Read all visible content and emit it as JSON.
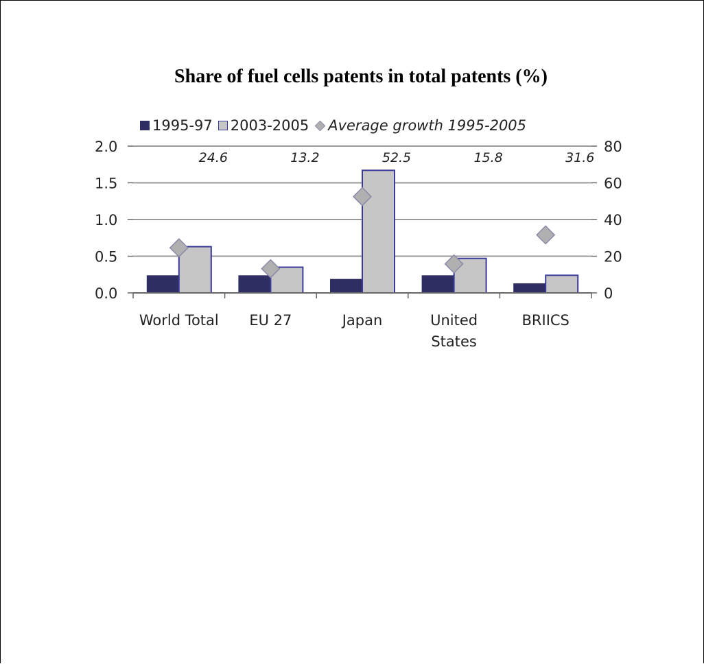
{
  "chart_data": {
    "type": "bar",
    "title": "Share of fuel cells patents in total patents (%)",
    "categories": [
      "World Total",
      "EU 27",
      "Japan",
      "United States",
      "BRIICS"
    ],
    "category_lines": [
      [
        "World Total"
      ],
      [
        "EU 27"
      ],
      [
        "Japan"
      ],
      [
        "United",
        "States"
      ],
      [
        "BRIICS"
      ]
    ],
    "series": [
      {
        "name": "1995-97",
        "type": "bar",
        "axis": "left",
        "values": [
          0.24,
          0.24,
          0.19,
          0.24,
          0.13
        ],
        "color": "#2e2e63"
      },
      {
        "name": "2003-2005",
        "type": "bar",
        "axis": "left",
        "values": [
          0.63,
          0.35,
          1.67,
          0.47,
          0.24
        ],
        "color": "#c6c6c6",
        "edge": "#3a3a9a"
      },
      {
        "name": "Average growth 1995-2005",
        "type": "scatter",
        "axis": "right",
        "values": [
          24.6,
          13.2,
          52.5,
          15.8,
          31.6
        ],
        "color": "#b0b0b0"
      }
    ],
    "data_labels": [
      "24.6",
      "13.2",
      "52.5",
      "15.8",
      "31.6"
    ],
    "left_axis": {
      "ylim": [
        0,
        2.0
      ],
      "ticks": [
        "0.0",
        "0.5",
        "1.0",
        "1.5",
        "2.0"
      ]
    },
    "right_axis": {
      "ylim": [
        0,
        80
      ],
      "ticks": [
        "0",
        "20",
        "40",
        "60",
        "80"
      ]
    },
    "grid": true,
    "legend_position": "top"
  }
}
